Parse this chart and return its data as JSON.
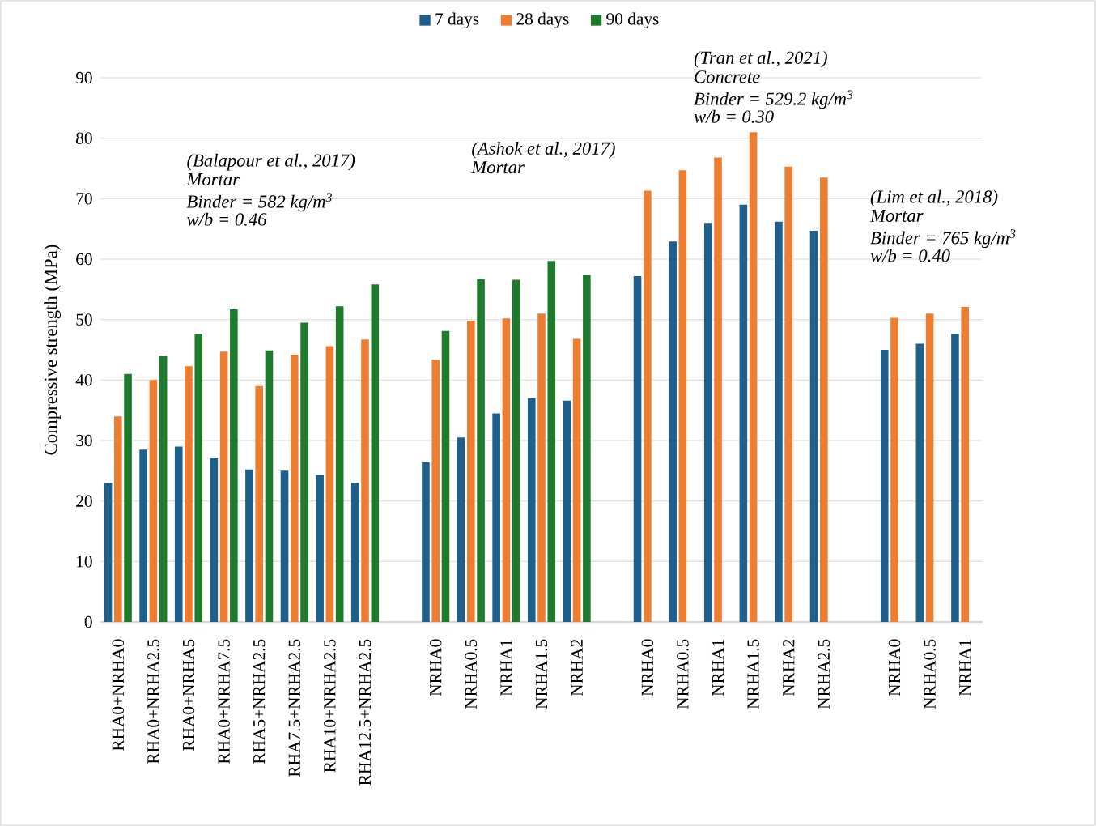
{
  "chart_data": {
    "type": "bar",
    "ylabel": "Compressive strength (MPa)",
    "categories": [
      "RHA0+NRHA0",
      "RHA0+NRHA2.5",
      "RHA0+NRHA5",
      "RHA0+NRHA7.5",
      "RHA5+NRHA2.5",
      "RHA7.5+NRHA2.5",
      "RHA10+NRHA2.5",
      "RHA12.5+NRHA2.5",
      null,
      "NRHA0",
      "NRHA0.5",
      "NRHA1",
      "NRHA1.5",
      "NRHA2",
      null,
      "NRHA0",
      "NRHA0.5",
      "NRHA1",
      "NRHA1.5",
      "NRHA2",
      "NRHA2.5",
      null,
      "NRHA0",
      "NRHA0.5",
      "NRHA1"
    ],
    "series": [
      {
        "name": "7 days",
        "color": "#1f5f8b",
        "values": [
          23,
          28.5,
          29,
          27.2,
          25.2,
          25,
          24.3,
          23,
          null,
          26.4,
          30.5,
          34.5,
          37,
          36.6,
          null,
          57.2,
          62.9,
          66,
          69,
          66.2,
          64.7,
          null,
          45,
          46,
          47.6
        ]
      },
      {
        "name": "28 days",
        "color": "#ed7d31",
        "values": [
          34,
          40,
          42.3,
          44.7,
          39,
          44.2,
          45.6,
          46.7,
          null,
          43.4,
          49.8,
          50.2,
          51,
          46.8,
          null,
          71.3,
          74.7,
          76.8,
          81,
          75.3,
          73.5,
          null,
          50.3,
          51,
          52.1
        ]
      },
      {
        "name": "90 days",
        "color": "#1e7b2e",
        "values": [
          41,
          44,
          47.6,
          51.7,
          44.9,
          49.5,
          52.2,
          55.8,
          null,
          48.1,
          56.7,
          56.6,
          59.7,
          57.4,
          null,
          null,
          null,
          null,
          null,
          null,
          null,
          null,
          null,
          null,
          null
        ]
      }
    ],
    "ylim": [
      0,
      90
    ],
    "yticks": [
      0,
      10,
      20,
      30,
      40,
      50,
      60,
      70,
      80,
      90
    ],
    "grid": "y",
    "legend": "top",
    "annotations": [
      "(Balapour et al., 2017)",
      "Mortar",
      "Binder = 582 kg/m$^{3}$",
      "w/b = 0.46",
      "(Ashok et al., 2017)",
      "Mortar",
      "(Tran et al., 2021)",
      "Concrete",
      "Binder = 529.2 kg/m$^{3}$",
      "w/b = 0.30",
      "(Lim et al., 2018)",
      "Mortar",
      "Binder = 765 kg/m$^{3}$",
      "w/b = 0.40"
    ]
  }
}
